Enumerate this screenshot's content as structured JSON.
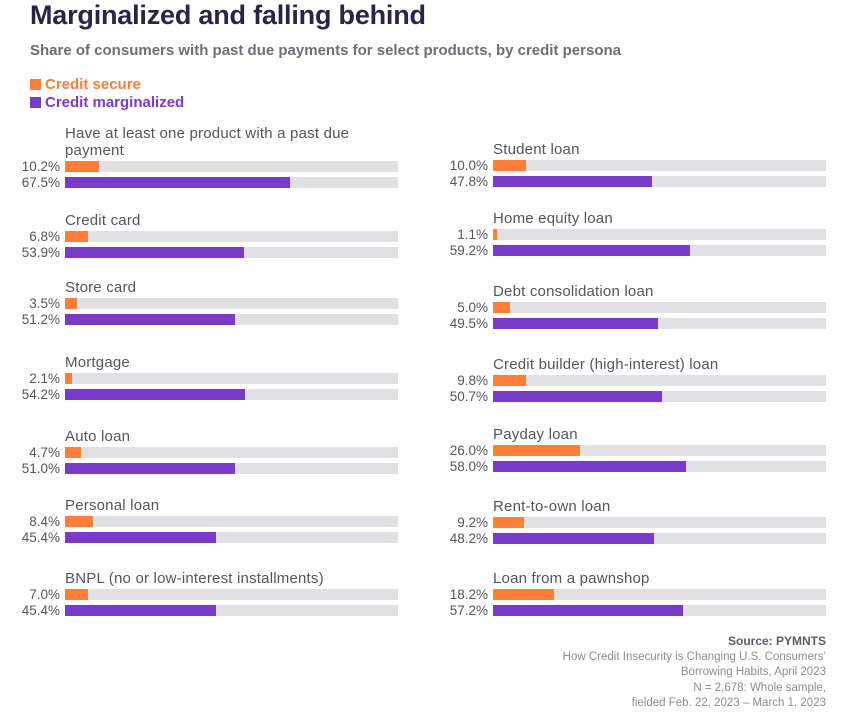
{
  "header": {
    "title": "Marginalized and falling behind",
    "subtitle": "Share of consumers with past due payments for select products, by credit persona"
  },
  "colors": {
    "secure": "#ff7f3a",
    "marginalized": "#7a3bc9",
    "track": "#e1e1e3"
  },
  "chart_data": {
    "type": "bar",
    "orientation": "horizontal",
    "title": "Marginalized and falling behind",
    "subtitle": "Share of consumers with past due payments for select products, by credit persona",
    "xlim": [
      0,
      100
    ],
    "unit": "%",
    "grid": false,
    "legend_position": "top-left",
    "legend": [
      "Credit secure",
      "Credit marginalized"
    ],
    "categories": [
      "Have at least one product with a past due payment",
      "Credit card",
      "Store card",
      "Mortgage",
      "Auto loan",
      "Personal loan",
      "BNPL (no or low-interest installments)",
      "Student loan",
      "Home equity loan",
      "Debt consolidation loan",
      "Credit builder (high-interest) loan",
      "Payday loan",
      "Rent-to-own loan",
      "Loan from a pawnshop"
    ],
    "series": [
      {
        "name": "Credit secure",
        "values": [
          10.2,
          6.8,
          3.5,
          2.1,
          4.7,
          8.4,
          7.0,
          10.0,
          1.1,
          5.0,
          9.8,
          26.0,
          9.2,
          18.2
        ]
      },
      {
        "name": "Credit marginalized",
        "values": [
          67.5,
          53.9,
          51.2,
          54.2,
          51.0,
          45.4,
          45.4,
          47.8,
          59.2,
          49.5,
          50.7,
          58.0,
          48.2,
          57.2
        ]
      }
    ],
    "value_labels": {
      "secure": [
        "10.2%",
        "6.8%",
        "3.5%",
        "2.1%",
        "4.7%",
        "8.4%",
        "7.0%",
        "10.0%",
        "1.1%",
        "5.0%",
        "9.8%",
        "26.0%",
        "9.2%",
        "18.2%"
      ],
      "marginalized": [
        "67.5%",
        "53.9%",
        "51.2%",
        "54.2%",
        "51.0%",
        "45.4%",
        "45.4%",
        "47.8%",
        "59.2%",
        "49.5%",
        "50.7%",
        "58.0%",
        "48.2%",
        "57.2%"
      ]
    },
    "display_labels": [
      [
        "Have at least one product with a past due",
        "payment"
      ],
      [
        "Credit card"
      ],
      [
        "Store card"
      ],
      [
        "Mortgage"
      ],
      [
        "Auto loan"
      ],
      [
        "Personal loan"
      ],
      [
        "BNPL (no or low-interest installments)"
      ],
      [
        "Student loan"
      ],
      [
        "Home equity loan"
      ],
      [
        "Debt consolidation loan"
      ],
      [
        "Credit builder (high-interest) loan"
      ],
      [
        "Payday loan"
      ],
      [
        "Rent-to-own loan"
      ],
      [
        "Loan from a pawnshop"
      ]
    ]
  },
  "source": {
    "title": "Source: PYMNTS",
    "lines": [
      "How Credit Insecurity is Changing U.S. Consumers’",
      "Borrowing Habits, April 2023",
      "N = 2,678: Whole sample,",
      "fielded Feb. 22, 2023 – March 1, 2023"
    ]
  }
}
